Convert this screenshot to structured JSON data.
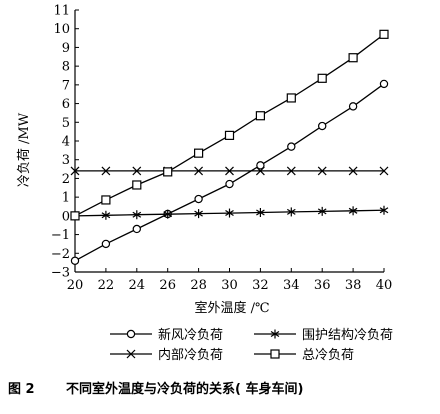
{
  "chart_data": {
    "type": "line",
    "xlabel": "室外温度 /℃",
    "ylabel": "冷负荷 /MW",
    "x": [
      20,
      22,
      24,
      26,
      28,
      30,
      32,
      34,
      36,
      38,
      40
    ],
    "xlim": [
      20,
      40
    ],
    "ylim": [
      -3,
      11
    ],
    "x_ticks": [
      20,
      22,
      24,
      26,
      28,
      30,
      32,
      34,
      36,
      38,
      40
    ],
    "y_ticks": [
      -3,
      -2,
      -1,
      0,
      1,
      2,
      3,
      4,
      5,
      6,
      7,
      8,
      9,
      10,
      11
    ],
    "grid": false,
    "legend_position": "bottom",
    "series": [
      {
        "name": "新风冷负荷",
        "marker": "circle",
        "values": [
          -2.4,
          -1.5,
          -0.7,
          0.1,
          0.9,
          1.7,
          2.7,
          3.7,
          4.8,
          5.85,
          7.05
        ]
      },
      {
        "name": "围护结构冷负荷",
        "marker": "asterisk",
        "values": [
          0.0,
          0.03,
          0.06,
          0.09,
          0.12,
          0.15,
          0.18,
          0.21,
          0.24,
          0.27,
          0.3
        ]
      },
      {
        "name": "内部冷负荷",
        "marker": "x",
        "values": [
          2.4,
          2.4,
          2.4,
          2.4,
          2.4,
          2.4,
          2.4,
          2.4,
          2.4,
          2.4,
          2.4
        ]
      },
      {
        "name": "总冷负荷",
        "marker": "square",
        "values": [
          0.0,
          0.85,
          1.65,
          2.35,
          3.35,
          4.3,
          5.35,
          6.3,
          7.35,
          8.45,
          9.7
        ]
      }
    ]
  },
  "caption": {
    "label": "图 2",
    "text": "不同室外温度与冷负荷的关系( 车身车间)"
  }
}
